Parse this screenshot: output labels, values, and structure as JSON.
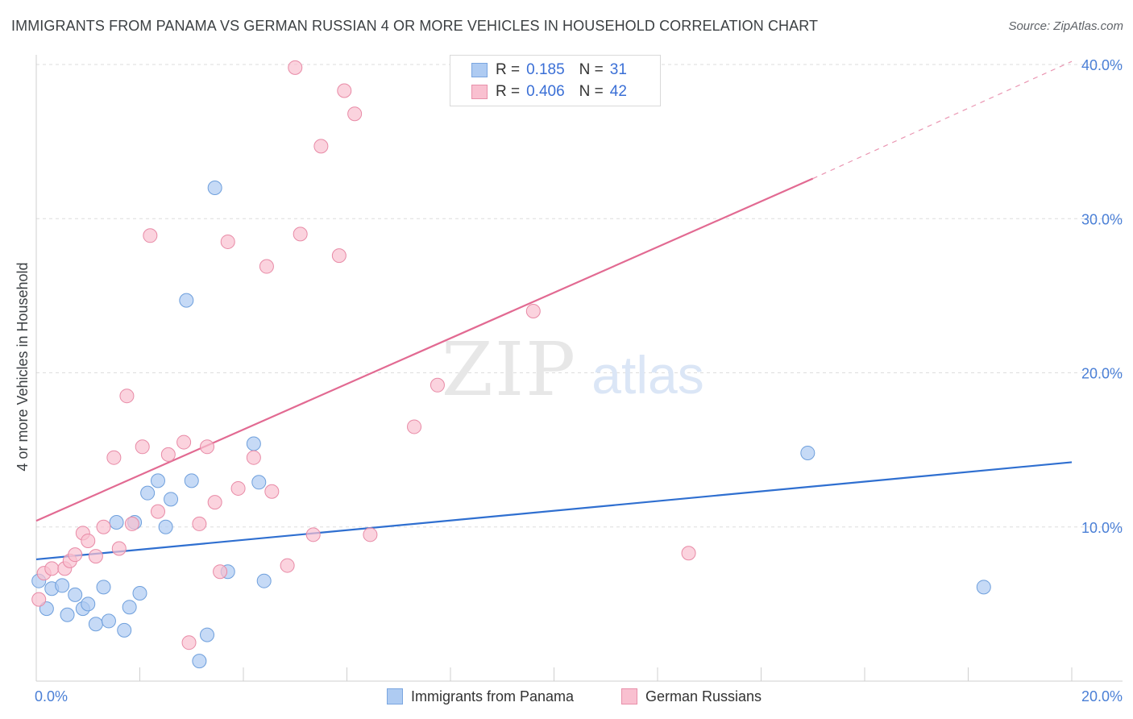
{
  "title": "IMMIGRANTS FROM PANAMA VS GERMAN RUSSIAN 4 OR MORE VEHICLES IN HOUSEHOLD CORRELATION CHART",
  "source": "Source: ZipAtlas.com",
  "watermark": {
    "zip": "ZIP",
    "atlas": "atlas"
  },
  "legend": {
    "rows": [
      {
        "r_label": "R =",
        "r_value": "0.185",
        "n_label": "N =",
        "n_value": "31",
        "color": "#aecbf2",
        "border": "#7aa6e0"
      },
      {
        "r_label": "R =",
        "r_value": "0.406",
        "n_label": "N =",
        "n_value": "42",
        "color": "#f9c0d0",
        "border": "#e890aa"
      }
    ]
  },
  "chart_data": {
    "type": "scatter",
    "xlabel": "",
    "ylabel": "4 or more Vehicles in Household",
    "xlim": [
      0,
      20
    ],
    "ylim": [
      0,
      40
    ],
    "x_tick_labels": {
      "min": "0.0%",
      "max": "20.0%"
    },
    "y_tick_labels": [
      "10.0%",
      "20.0%",
      "30.0%",
      "40.0%"
    ],
    "y_ticks": [
      10,
      20,
      30,
      40
    ],
    "series": [
      {
        "name": "Immigrants from Panama",
        "color": "#aecbf2",
        "stroke": "#6e9fdc",
        "line_color": "#2f6fd0",
        "trend": {
          "x0": 0,
          "y0": 7.9,
          "x1": 20,
          "y1": 14.2
        },
        "points": [
          [
            0.05,
            6.5
          ],
          [
            0.2,
            4.7
          ],
          [
            0.3,
            6.0
          ],
          [
            0.5,
            6.2
          ],
          [
            0.6,
            4.3
          ],
          [
            0.75,
            5.6
          ],
          [
            0.9,
            4.7
          ],
          [
            1.0,
            5.0
          ],
          [
            1.15,
            3.7
          ],
          [
            1.3,
            6.1
          ],
          [
            1.4,
            3.9
          ],
          [
            1.55,
            10.3
          ],
          [
            1.7,
            3.3
          ],
          [
            1.8,
            4.8
          ],
          [
            1.9,
            10.3
          ],
          [
            2.0,
            5.7
          ],
          [
            2.15,
            12.2
          ],
          [
            2.35,
            13.0
          ],
          [
            2.5,
            10.0
          ],
          [
            2.6,
            11.8
          ],
          [
            2.9,
            24.7
          ],
          [
            3.0,
            13.0
          ],
          [
            3.3,
            3.0
          ],
          [
            3.45,
            32.0
          ],
          [
            3.7,
            7.1
          ],
          [
            4.2,
            15.4
          ],
          [
            4.3,
            12.9
          ],
          [
            4.4,
            6.5
          ],
          [
            3.15,
            1.3
          ],
          [
            14.9,
            14.8
          ],
          [
            18.3,
            6.1
          ]
        ]
      },
      {
        "name": "German Russians",
        "color": "#f9c0d0",
        "stroke": "#e88aa6",
        "line_color": "#e26a92",
        "trend": {
          "x0": 0,
          "y0": 10.4,
          "x1": 15.0,
          "y1": 32.6
        },
        "trend_ext": {
          "x0": 15.0,
          "y0": 32.6,
          "x1": 20.0,
          "y1": 40.2
        },
        "points": [
          [
            0.05,
            5.3
          ],
          [
            0.15,
            7.0
          ],
          [
            0.3,
            7.3
          ],
          [
            0.55,
            7.3
          ],
          [
            0.65,
            7.8
          ],
          [
            0.75,
            8.2
          ],
          [
            0.9,
            9.6
          ],
          [
            1.0,
            9.1
          ],
          [
            1.15,
            8.1
          ],
          [
            1.3,
            10.0
          ],
          [
            1.5,
            14.5
          ],
          [
            1.6,
            8.6
          ],
          [
            1.75,
            18.5
          ],
          [
            1.85,
            10.2
          ],
          [
            2.05,
            15.2
          ],
          [
            2.2,
            28.9
          ],
          [
            2.35,
            11.0
          ],
          [
            2.55,
            14.7
          ],
          [
            2.85,
            15.5
          ],
          [
            2.95,
            2.5
          ],
          [
            3.15,
            10.2
          ],
          [
            3.3,
            15.2
          ],
          [
            3.45,
            11.6
          ],
          [
            3.55,
            7.1
          ],
          [
            3.7,
            28.5
          ],
          [
            3.9,
            12.5
          ],
          [
            4.2,
            14.5
          ],
          [
            4.45,
            26.9
          ],
          [
            4.55,
            12.3
          ],
          [
            4.85,
            7.5
          ],
          [
            5.0,
            39.8
          ],
          [
            5.1,
            29.0
          ],
          [
            5.35,
            9.5
          ],
          [
            5.5,
            34.7
          ],
          [
            5.85,
            27.6
          ],
          [
            5.95,
            38.3
          ],
          [
            6.15,
            36.8
          ],
          [
            6.45,
            9.5
          ],
          [
            7.3,
            16.5
          ],
          [
            7.75,
            19.2
          ],
          [
            9.6,
            24.0
          ],
          [
            12.6,
            8.3
          ]
        ]
      }
    ]
  }
}
